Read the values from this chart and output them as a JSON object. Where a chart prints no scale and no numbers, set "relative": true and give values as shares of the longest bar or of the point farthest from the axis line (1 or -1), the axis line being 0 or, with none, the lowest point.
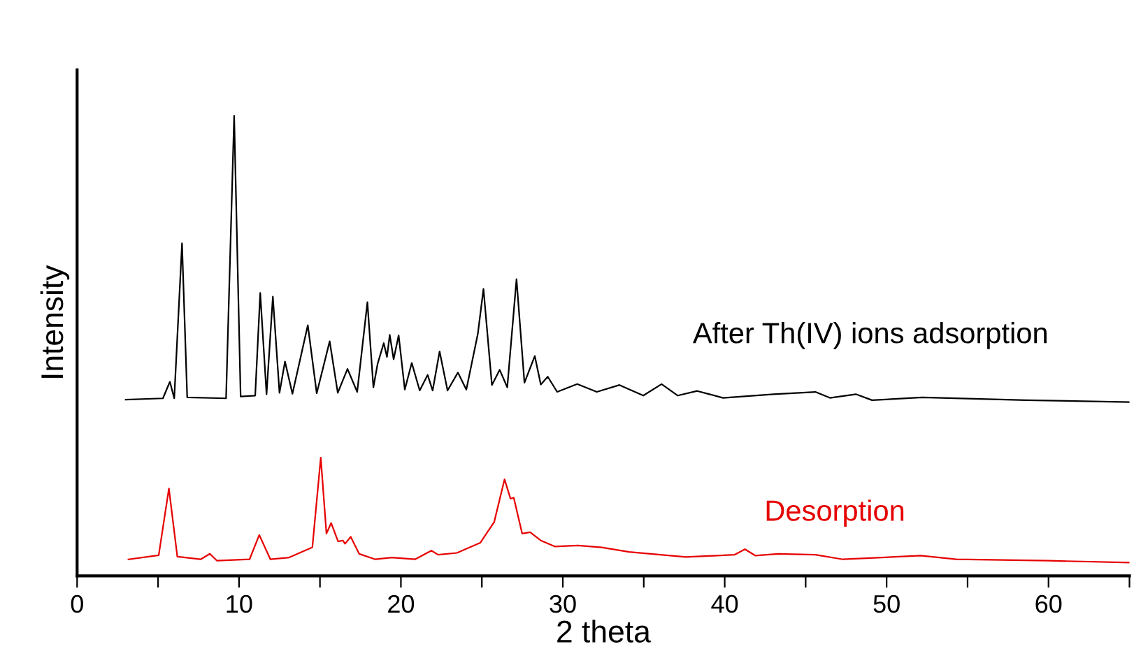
{
  "chart_data": {
    "type": "line",
    "xlabel": "2 theta",
    "ylabel": "Intensity",
    "relative": true,
    "xlim": [
      0,
      65
    ],
    "xticks": [
      0,
      {
        "value": 5,
        "label": null
      },
      10,
      {
        "value": 15,
        "label": null
      },
      20,
      {
        "value": 25,
        "label": null
      },
      30,
      {
        "value": 35,
        "label": null
      },
      40,
      {
        "value": 45,
        "label": null
      },
      50,
      {
        "value": 55,
        "label": null
      },
      60,
      {
        "value": 65,
        "label": null
      }
    ],
    "tick_labels": "x",
    "grid": false,
    "legend": false,
    "marker": "none",
    "line_style": "solid",
    "series": [
      {
        "name": "After Th(IV) ions adsorption",
        "color": "#000000",
        "x": [
          3.0,
          5.3,
          5.73,
          6.0,
          6.48,
          6.8,
          9.2,
          9.7,
          10.1,
          11.0,
          11.31,
          11.7,
          12.09,
          12.5,
          12.84,
          13.3,
          14.25,
          14.8,
          15.6,
          16.1,
          16.7,
          17.3,
          17.93,
          18.3,
          18.56,
          18.94,
          19.14,
          19.31,
          19.55,
          19.86,
          20.24,
          20.67,
          21.16,
          21.65,
          21.96,
          22.39,
          22.88,
          23.52,
          24.04,
          24.75,
          25.1,
          25.62,
          26.1,
          26.57,
          27.14,
          27.63,
          28.27,
          28.64,
          29.07,
          29.65,
          30.89,
          32.1,
          33.5,
          34.97,
          36.1,
          37.1,
          38.3,
          39.9,
          43.0,
          45.6,
          46.5,
          48.1,
          49.1,
          52.2,
          58.6,
          65.0
        ],
        "values": [
          0.383,
          0.386,
          0.422,
          0.386,
          0.723,
          0.388,
          0.386,
          1.0,
          0.39,
          0.392,
          0.615,
          0.395,
          0.607,
          0.398,
          0.466,
          0.396,
          0.545,
          0.397,
          0.51,
          0.398,
          0.45,
          0.4,
          0.595,
          0.41,
          0.461,
          0.506,
          0.476,
          0.524,
          0.471,
          0.523,
          0.405,
          0.463,
          0.403,
          0.437,
          0.403,
          0.488,
          0.403,
          0.442,
          0.405,
          0.526,
          0.624,
          0.415,
          0.448,
          0.41,
          0.645,
          0.42,
          0.478,
          0.416,
          0.433,
          0.4,
          0.417,
          0.4,
          0.415,
          0.392,
          0.417,
          0.392,
          0.402,
          0.387,
          0.395,
          0.4,
          0.387,
          0.395,
          0.382,
          0.388,
          0.382,
          0.378
        ]
      },
      {
        "name": "Desorption",
        "color": "#e60000",
        "x": [
          3.17,
          5.04,
          5.67,
          6.19,
          7.63,
          8.2,
          8.64,
          10.65,
          11.25,
          11.94,
          13.1,
          14.53,
          15.05,
          15.4,
          15.69,
          16.12,
          16.41,
          16.55,
          16.9,
          17.42,
          18.42,
          19.43,
          20.87,
          21.88,
          22.3,
          23.46,
          24.9,
          25.76,
          26.4,
          26.77,
          26.97,
          27.49,
          27.98,
          28.64,
          29.5,
          30.94,
          32.4,
          34.1,
          37.6,
          40.6,
          41.25,
          41.9,
          43.3,
          45.6,
          47.3,
          52.1,
          54.3,
          60.0,
          65.0
        ],
        "values": [
          0.036,
          0.045,
          0.19,
          0.042,
          0.036,
          0.048,
          0.033,
          0.036,
          0.089,
          0.036,
          0.04,
          0.062,
          0.257,
          0.092,
          0.115,
          0.075,
          0.077,
          0.07,
          0.085,
          0.048,
          0.036,
          0.04,
          0.036,
          0.055,
          0.046,
          0.05,
          0.072,
          0.117,
          0.21,
          0.168,
          0.17,
          0.092,
          0.095,
          0.077,
          0.064,
          0.066,
          0.062,
          0.052,
          0.041,
          0.046,
          0.058,
          0.044,
          0.048,
          0.046,
          0.036,
          0.044,
          0.036,
          0.033,
          0.029
        ]
      }
    ]
  }
}
